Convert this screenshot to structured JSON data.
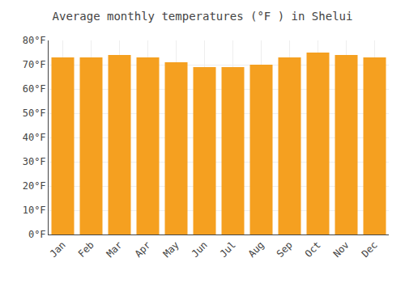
{
  "chart_data": {
    "type": "bar",
    "title": "Average monthly temperatures (°F ) in Shelui",
    "categories": [
      "Jan",
      "Feb",
      "Mar",
      "Apr",
      "May",
      "Jun",
      "Jul",
      "Aug",
      "Sep",
      "Oct",
      "Nov",
      "Dec"
    ],
    "values": [
      73,
      73,
      74,
      73,
      71,
      69,
      69,
      70,
      73,
      75,
      74,
      73
    ],
    "color": "#F5A020",
    "ylim": [
      0,
      80
    ],
    "yticks": [
      {
        "value": 0,
        "label": "0°F"
      },
      {
        "value": 10,
        "label": "10°F"
      },
      {
        "value": 20,
        "label": "20°F"
      },
      {
        "value": 30,
        "label": "30°F"
      },
      {
        "value": 40,
        "label": "40°F"
      },
      {
        "value": 50,
        "label": "50°F"
      },
      {
        "value": 60,
        "label": "60°F"
      },
      {
        "value": 70,
        "label": "70°F"
      },
      {
        "value": 80,
        "label": "80°F"
      }
    ],
    "grid": true
  }
}
